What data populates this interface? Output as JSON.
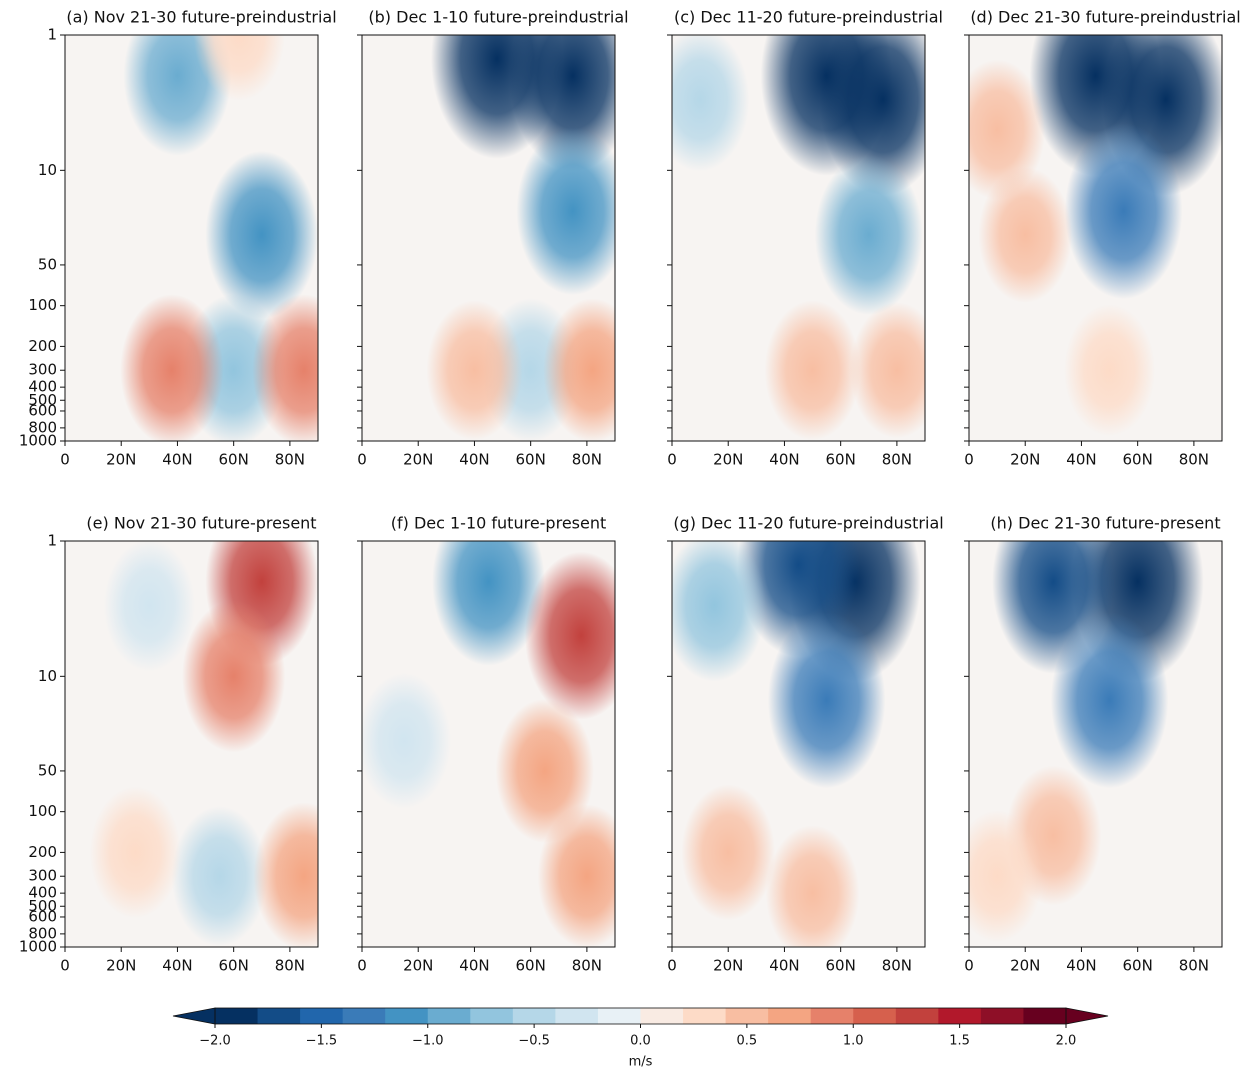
{
  "chart_data": [
    {
      "type": "contour",
      "title": "(a) Nov 21-30 future-preindustrial",
      "xlim": [
        0,
        90
      ],
      "xticks": [
        0,
        {
          "value": 20,
          "label": "20N"
        },
        {
          "value": 40,
          "label": "40N"
        },
        {
          "value": 60,
          "label": "60N"
        },
        {
          "value": 80,
          "label": "80N"
        }
      ],
      "ylim": [
        1000,
        1
      ],
      "log_y": true,
      "ytick_labels": true,
      "yticks": [
        1,
        10,
        50,
        100,
        200,
        300,
        400,
        500,
        600,
        800,
        1000
      ],
      "anomalies": {
        "lat": [
          40,
          70,
          60,
          38,
          85,
          62
        ],
        "pressure": [
          2,
          30,
          300,
          300,
          300,
          1
        ],
        "values": [
          -1.0,
          -1.2,
          -0.8,
          0.8,
          0.8,
          0.3
        ]
      }
    },
    {
      "type": "contour",
      "title": "(b) Dec 1-10 future-preindustrial",
      "xlim": [
        0,
        90
      ],
      "xticks": [
        0,
        {
          "value": 20,
          "label": "20N"
        },
        {
          "value": 40,
          "label": "40N"
        },
        {
          "value": 60,
          "label": "60N"
        },
        {
          "value": 80,
          "label": "80N"
        }
      ],
      "ylim": [
        1000,
        1
      ],
      "log_y": true,
      "ytick_labels": false,
      "yticks": [
        1,
        10,
        50,
        100,
        200,
        300,
        400,
        500,
        600,
        800,
        1000
      ],
      "anomalies": {
        "lat": [
          48,
          75,
          75,
          60,
          40,
          82
        ],
        "pressure": [
          1.5,
          2,
          20,
          300,
          300,
          300
        ],
        "values": [
          -2.0,
          -1.8,
          -1.2,
          -0.6,
          0.5,
          0.6
        ]
      }
    },
    {
      "type": "contour",
      "title": "(c) Dec 11-20 future-preindustrial",
      "xlim": [
        0,
        90
      ],
      "xticks": [
        0,
        {
          "value": 20,
          "label": "20N"
        },
        {
          "value": 40,
          "label": "40N"
        },
        {
          "value": 60,
          "label": "60N"
        },
        {
          "value": 80,
          "label": "80N"
        }
      ],
      "ylim": [
        1000,
        1
      ],
      "log_y": true,
      "ytick_labels": false,
      "yticks": [
        1,
        10,
        50,
        100,
        200,
        300,
        400,
        500,
        600,
        800,
        1000
      ],
      "anomalies": {
        "lat": [
          55,
          75,
          70,
          50,
          80,
          10
        ],
        "pressure": [
          2,
          3,
          30,
          300,
          300,
          3
        ],
        "values": [
          -2.0,
          -1.8,
          -1.0,
          0.5,
          0.4,
          -0.6
        ]
      }
    },
    {
      "type": "contour",
      "title": "(d) Dec 21-30 future-preindustrial",
      "xlim": [
        0,
        90
      ],
      "xticks": [
        0,
        {
          "value": 20,
          "label": "20N"
        },
        {
          "value": 40,
          "label": "40N"
        },
        {
          "value": 60,
          "label": "60N"
        },
        {
          "value": 80,
          "label": "80N"
        }
      ],
      "ylim": [
        1000,
        1
      ],
      "log_y": true,
      "ytick_labels": false,
      "yticks": [
        1,
        10,
        50,
        100,
        200,
        300,
        400,
        500,
        600,
        800,
        1000
      ],
      "anomalies": {
        "lat": [
          45,
          70,
          55,
          10,
          20,
          50
        ],
        "pressure": [
          2,
          3,
          20,
          5,
          30,
          300
        ],
        "values": [
          -2.0,
          -1.8,
          -1.4,
          0.5,
          0.4,
          0.3
        ]
      }
    },
    {
      "type": "contour",
      "title": "(e) Nov 21-30 future-present",
      "xlim": [
        0,
        90
      ],
      "xticks": [
        0,
        {
          "value": 20,
          "label": "20N"
        },
        {
          "value": 40,
          "label": "40N"
        },
        {
          "value": 60,
          "label": "60N"
        },
        {
          "value": 80,
          "label": "80N"
        }
      ],
      "ylim": [
        1000,
        1
      ],
      "log_y": true,
      "ytick_labels": true,
      "yticks": [
        1,
        10,
        50,
        100,
        200,
        300,
        400,
        500,
        600,
        800,
        1000
      ],
      "anomalies": {
        "lat": [
          70,
          60,
          30,
          55,
          85,
          25
        ],
        "pressure": [
          2,
          10,
          3,
          300,
          300,
          200
        ],
        "values": [
          1.2,
          0.8,
          -0.3,
          -0.5,
          0.7,
          0.3
        ]
      }
    },
    {
      "type": "contour",
      "title": "(f) Dec 1-10 future-present",
      "xlim": [
        0,
        90
      ],
      "xticks": [
        0,
        {
          "value": 20,
          "label": "20N"
        },
        {
          "value": 40,
          "label": "40N"
        },
        {
          "value": 60,
          "label": "60N"
        },
        {
          "value": 80,
          "label": "80N"
        }
      ],
      "ylim": [
        1000,
        1
      ],
      "log_y": true,
      "ytick_labels": false,
      "yticks": [
        1,
        10,
        50,
        100,
        200,
        300,
        400,
        500,
        600,
        800,
        1000
      ],
      "anomalies": {
        "lat": [
          45,
          78,
          65,
          15,
          80
        ],
        "pressure": [
          2,
          5,
          50,
          30,
          300
        ],
        "values": [
          -1.2,
          1.2,
          0.6,
          -0.4,
          0.6
        ]
      }
    },
    {
      "type": "contour",
      "title": "(g) Dec 11-20 future-preindustrial",
      "xlim": [
        0,
        90
      ],
      "xticks": [
        0,
        {
          "value": 20,
          "label": "20N"
        },
        {
          "value": 40,
          "label": "40N"
        },
        {
          "value": 60,
          "label": "60N"
        },
        {
          "value": 80,
          "label": "80N"
        }
      ],
      "ylim": [
        1000,
        1
      ],
      "log_y": true,
      "ytick_labels": false,
      "yticks": [
        1,
        10,
        50,
        100,
        200,
        300,
        400,
        500,
        600,
        800,
        1000
      ],
      "anomalies": {
        "lat": [
          65,
          45,
          55,
          15,
          20,
          50
        ],
        "pressure": [
          2,
          1.5,
          15,
          3,
          200,
          400
        ],
        "values": [
          -2.0,
          -1.6,
          -1.4,
          -0.8,
          0.4,
          0.4
        ]
      }
    },
    {
      "type": "contour",
      "title": "(h) Dec 21-30 future-present",
      "xlim": [
        0,
        90
      ],
      "xticks": [
        0,
        {
          "value": 20,
          "label": "20N"
        },
        {
          "value": 40,
          "label": "40N"
        },
        {
          "value": 60,
          "label": "60N"
        },
        {
          "value": 80,
          "label": "80N"
        }
      ],
      "ylim": [
        1000,
        1
      ],
      "log_y": true,
      "ytick_labels": false,
      "yticks": [
        1,
        10,
        50,
        100,
        200,
        300,
        400,
        500,
        600,
        800,
        1000
      ],
      "anomalies": {
        "lat": [
          60,
          30,
          50,
          30,
          10
        ],
        "pressure": [
          2,
          2,
          15,
          150,
          300
        ],
        "values": [
          -2.0,
          -1.6,
          -1.4,
          0.5,
          0.3
        ]
      }
    },
    {
      "type": "colorbar",
      "label": "m/s",
      "clim": [
        -2,
        2
      ],
      "extend": "both",
      "ticks": [
        {
          "value": -2.0,
          "label": "−2.0"
        },
        {
          "value": -1.5,
          "label": "−1.5"
        },
        {
          "value": -1.0,
          "label": "−1.0"
        },
        {
          "value": -0.5,
          "label": "−0.5"
        },
        {
          "value": 0.0,
          "label": "0.0"
        },
        0.5,
        {
          "value": 1.0,
          "label": "1.0"
        },
        1.5,
        {
          "value": 2.0,
          "label": "2.0"
        }
      ],
      "colors": [
        "#053061",
        "#134c87",
        "#2166ac",
        "#3a7bb8",
        "#4393c3",
        "#6aacd0",
        "#92c5de",
        "#b5d7e8",
        "#d1e5f0",
        "#e8f1f6",
        "#f9ebe3",
        "#fddbc7",
        "#f8bea2",
        "#f4a582",
        "#e6816a",
        "#d6604d",
        "#c2413d",
        "#b2182b",
        "#8e0f27",
        "#67001f"
      ]
    }
  ]
}
